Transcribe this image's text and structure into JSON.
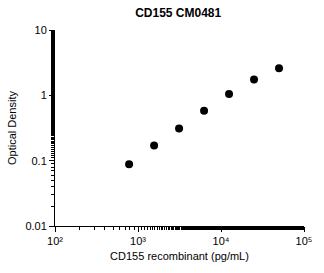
{
  "chart_data": {
    "type": "scatter",
    "title": "CD155 CM0481",
    "x_label": "CD155 recombinant (pg/mL)",
    "y_label": "Optical Density",
    "x": [
      781,
      1563,
      3125,
      6250,
      12500,
      25000,
      50000
    ],
    "values": [
      0.088,
      0.17,
      0.31,
      0.58,
      1.05,
      1.75,
      2.6
    ],
    "color": "#000000",
    "marker": "circle",
    "log": true,
    "grid": false,
    "xlim": [
      100,
      100000
    ],
    "xticks": [
      {
        "value": 100,
        "label": "10²"
      },
      {
        "value": 1000,
        "label": "10³"
      },
      {
        "value": 10000,
        "label": "10⁴"
      },
      {
        "value": 100000,
        "label": "10⁵"
      }
    ],
    "ylim": [
      0.01,
      10
    ],
    "yticks": [
      0.01,
      0.1,
      1,
      10
    ]
  }
}
